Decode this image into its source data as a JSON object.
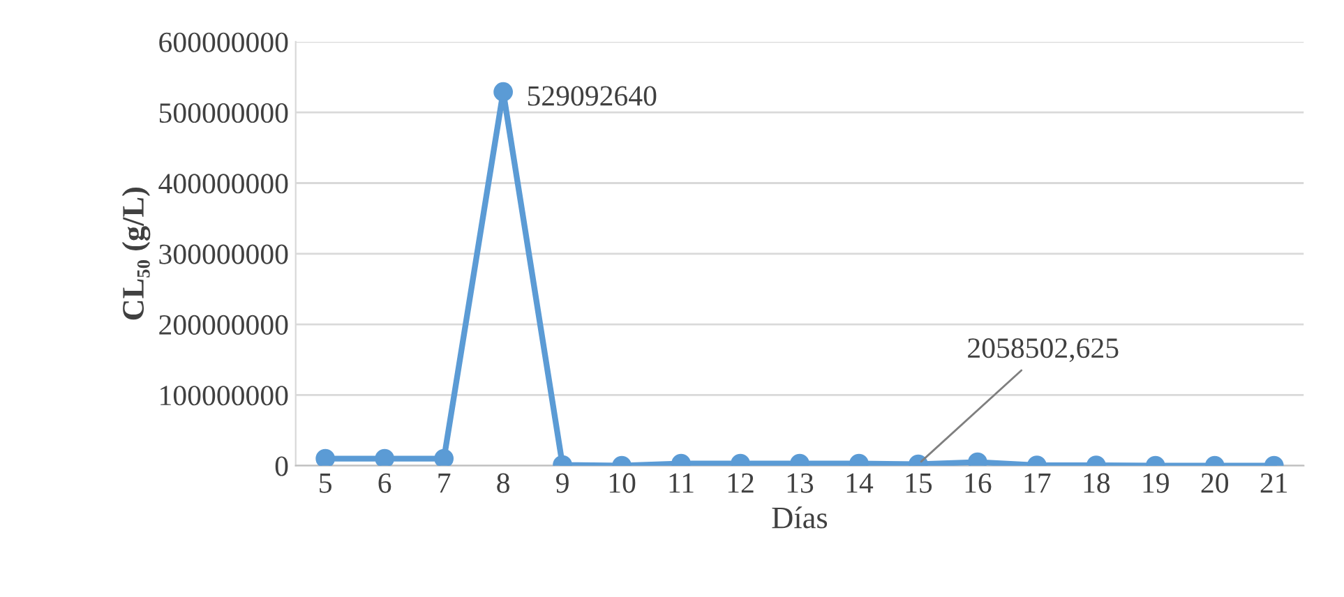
{
  "chart_data": {
    "type": "line",
    "xlabel": "Días",
    "ylabel": "CL₅₀ (g/L)",
    "categories": [
      "5",
      "6",
      "7",
      "8",
      "9",
      "10",
      "11",
      "12",
      "13",
      "14",
      "15",
      "16",
      "17",
      "18",
      "19",
      "20",
      "21"
    ],
    "series": [
      {
        "color": "#5b9bd5",
        "values": [
          10000000,
          10000000,
          10000000,
          529092640,
          1000000,
          0,
          3000000,
          3000000,
          3000000,
          3000000,
          2058502.625,
          5000000,
          500000,
          500000,
          0,
          0,
          0
        ]
      }
    ],
    "ylim": [
      0,
      600000000
    ],
    "yticks": [
      0,
      100000000,
      200000000,
      300000000,
      400000000,
      500000000,
      600000000
    ],
    "grid": "y",
    "marker": "circle",
    "line_style": "solid",
    "annotations": [
      {
        "text": "529092640",
        "x": "8",
        "y": 529092640
      },
      {
        "text": "2058502,625",
        "x": "15",
        "y": 2058502.625
      }
    ]
  }
}
